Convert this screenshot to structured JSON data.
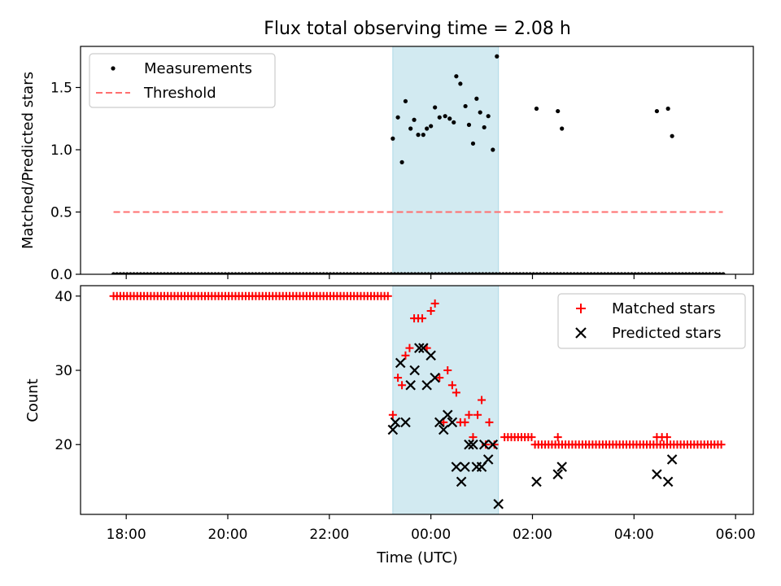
{
  "figure": {
    "title": "Flux total observing time = 2.08 h",
    "xlabel": "Time (UTC)"
  },
  "colors": {
    "shade": "#add8e6",
    "measurements": "#000000",
    "threshold": "#ff6f6f",
    "matched": "#ff0000",
    "predicted": "#000000"
  },
  "chart_data": [
    {
      "type": "scatter",
      "panel": "top",
      "ylabel": "Matched/Predicted stars",
      "xlim_hours": [
        17.1,
        30.35
      ],
      "ylim": [
        0,
        1.83
      ],
      "x_ticks": [
        {
          "h": 18,
          "label": "18:00"
        },
        {
          "h": 20,
          "label": "20:00"
        },
        {
          "h": 22,
          "label": "22:00"
        },
        {
          "h": 24,
          "label": "00:00"
        },
        {
          "h": 26,
          "label": "02:00"
        },
        {
          "h": 28,
          "label": "04:00"
        },
        {
          "h": 30,
          "label": "06:00"
        }
      ],
      "y_ticks": [
        {
          "v": 0.0,
          "label": "0.0"
        },
        {
          "v": 0.5,
          "label": "0.5"
        },
        {
          "v": 1.0,
          "label": "1.0"
        },
        {
          "v": 1.5,
          "label": "1.5"
        }
      ],
      "shaded_span_hours": [
        23.25,
        25.33
      ],
      "legend": {
        "position": "upper left",
        "entries": [
          {
            "label": "Measurements"
          },
          {
            "label": "Threshold"
          }
        ]
      },
      "threshold": {
        "value": 0.5,
        "x_start": 17.75,
        "x_end": 29.75
      },
      "zero_series": {
        "start": 17.75,
        "end": 29.75,
        "step": 0.0667
      },
      "measurements": [
        [
          23.25,
          1.09
        ],
        [
          23.35,
          1.26
        ],
        [
          23.43,
          0.9
        ],
        [
          23.5,
          1.39
        ],
        [
          23.6,
          1.17
        ],
        [
          23.67,
          1.24
        ],
        [
          23.75,
          1.12
        ],
        [
          23.85,
          1.12
        ],
        [
          23.92,
          1.17
        ],
        [
          24.0,
          1.19
        ],
        [
          24.08,
          1.34
        ],
        [
          24.17,
          1.26
        ],
        [
          24.28,
          1.27
        ],
        [
          24.37,
          1.25
        ],
        [
          24.45,
          1.22
        ],
        [
          24.5,
          1.59
        ],
        [
          24.58,
          1.53
        ],
        [
          24.68,
          1.35
        ],
        [
          24.75,
          1.2
        ],
        [
          24.83,
          1.05
        ],
        [
          24.9,
          1.41
        ],
        [
          24.97,
          1.3
        ],
        [
          25.05,
          1.18
        ],
        [
          25.13,
          1.27
        ],
        [
          25.22,
          1.0
        ],
        [
          25.3,
          1.75
        ],
        [
          26.08,
          1.33
        ],
        [
          26.5,
          1.31
        ],
        [
          26.58,
          1.17
        ],
        [
          28.45,
          1.31
        ],
        [
          28.67,
          1.33
        ],
        [
          28.75,
          1.11
        ]
      ]
    },
    {
      "type": "scatter",
      "panel": "bottom",
      "ylabel": "Count",
      "xlim_hours": [
        17.1,
        30.35
      ],
      "ylim": [
        10.6,
        41.4
      ],
      "y_ticks": [
        {
          "v": 20,
          "label": "20"
        },
        {
          "v": 30,
          "label": "30"
        },
        {
          "v": 40,
          "label": "40"
        }
      ],
      "shaded_span_hours": [
        23.25,
        25.33
      ],
      "legend": {
        "position": "upper right",
        "entries": [
          {
            "label": "Matched stars"
          },
          {
            "label": "Predicted stars"
          }
        ]
      },
      "matched_baseline": [
        {
          "start": 17.75,
          "end": 23.15,
          "step": 0.0667,
          "value": 40
        },
        {
          "start": 25.45,
          "end": 26.0,
          "step": 0.0667,
          "value": 21
        },
        {
          "start": 26.05,
          "end": 29.75,
          "step": 0.0667,
          "value": 20
        }
      ],
      "matched": [
        [
          23.25,
          24
        ],
        [
          23.35,
          29
        ],
        [
          23.43,
          28
        ],
        [
          23.5,
          32
        ],
        [
          23.58,
          33
        ],
        [
          23.67,
          37
        ],
        [
          23.75,
          37
        ],
        [
          23.83,
          37
        ],
        [
          23.92,
          33
        ],
        [
          24.0,
          38
        ],
        [
          24.08,
          39
        ],
        [
          24.17,
          29
        ],
        [
          24.25,
          23
        ],
        [
          24.33,
          30
        ],
        [
          24.42,
          28
        ],
        [
          24.5,
          27
        ],
        [
          24.58,
          23
        ],
        [
          24.67,
          23
        ],
        [
          24.75,
          24
        ],
        [
          24.83,
          21
        ],
        [
          24.92,
          24
        ],
        [
          25.0,
          26
        ],
        [
          25.08,
          20
        ],
        [
          25.15,
          23
        ],
        [
          25.25,
          20
        ],
        [
          26.5,
          21
        ],
        [
          28.45,
          21
        ],
        [
          28.55,
          21
        ],
        [
          28.65,
          21
        ]
      ],
      "predicted": [
        [
          23.25,
          22
        ],
        [
          23.3,
          23
        ],
        [
          23.4,
          31
        ],
        [
          23.5,
          23
        ],
        [
          23.6,
          28
        ],
        [
          23.68,
          30
        ],
        [
          23.77,
          33
        ],
        [
          23.85,
          33
        ],
        [
          23.92,
          28
        ],
        [
          24.0,
          32
        ],
        [
          24.08,
          29
        ],
        [
          24.17,
          23
        ],
        [
          24.25,
          22
        ],
        [
          24.33,
          24
        ],
        [
          24.42,
          23
        ],
        [
          24.5,
          17
        ],
        [
          24.6,
          15
        ],
        [
          24.67,
          17
        ],
        [
          24.75,
          20
        ],
        [
          24.83,
          20
        ],
        [
          24.9,
          17
        ],
        [
          25.0,
          17
        ],
        [
          25.05,
          20
        ],
        [
          25.13,
          18
        ],
        [
          25.22,
          20
        ],
        [
          25.33,
          12
        ],
        [
          26.08,
          15
        ],
        [
          26.5,
          16
        ],
        [
          26.58,
          17
        ],
        [
          28.45,
          16
        ],
        [
          28.67,
          15
        ],
        [
          28.75,
          18
        ]
      ]
    }
  ]
}
